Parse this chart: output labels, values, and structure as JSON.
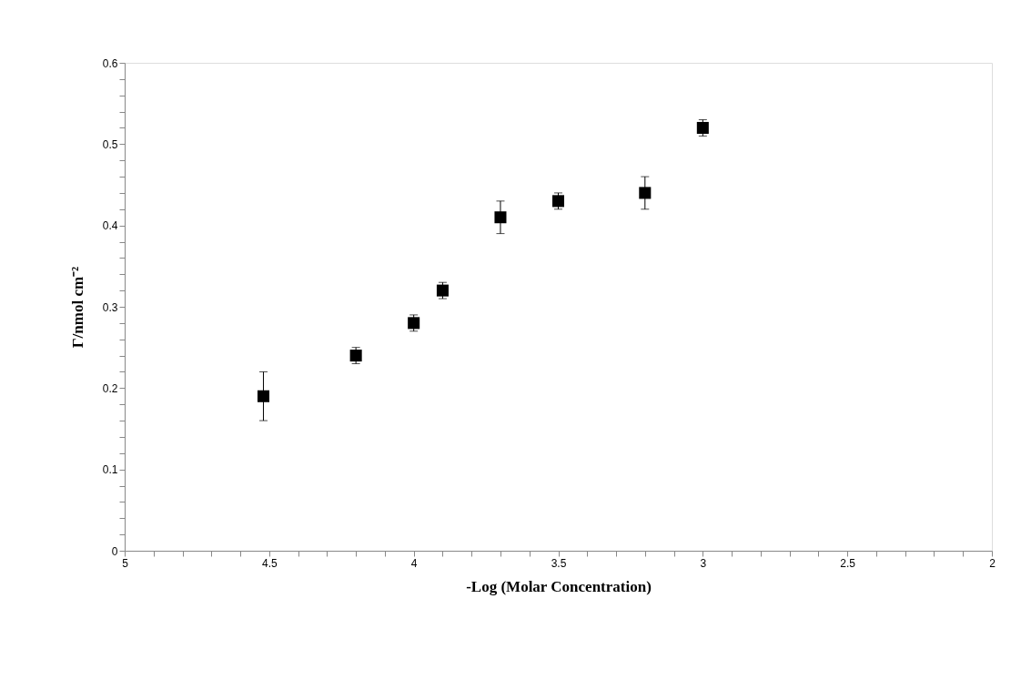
{
  "chart_data": {
    "type": "scatter",
    "xlabel": "-Log (Molar Concentration)",
    "ylabel": "Γ/nmol cm⁻²",
    "x": [
      4.52,
      4.2,
      4.0,
      3.9,
      3.7,
      3.5,
      3.2,
      3.0
    ],
    "values": [
      0.19,
      0.24,
      0.28,
      0.32,
      0.41,
      0.43,
      0.44,
      0.52
    ],
    "errors": [
      [
        0.16,
        0.22
      ],
      [
        0.23,
        0.25
      ],
      [
        0.27,
        0.29
      ],
      [
        0.31,
        0.33
      ],
      [
        0.39,
        0.43
      ],
      [
        0.42,
        0.44
      ],
      [
        0.42,
        0.46
      ],
      [
        0.51,
        0.53
      ]
    ],
    "color": "#000000",
    "marker": "square",
    "grid": false,
    "legend": false,
    "xlim": [
      5,
      2
    ],
    "xticks": [
      5,
      {
        "value": 4.9,
        "label": null
      },
      {
        "value": 4.8,
        "label": null
      },
      {
        "value": 4.7,
        "label": null
      },
      {
        "value": 4.6,
        "label": null
      },
      4.5,
      {
        "value": 4.4,
        "label": null
      },
      {
        "value": 4.3,
        "label": null
      },
      {
        "value": 4.2,
        "label": null
      },
      {
        "value": 4.1,
        "label": null
      },
      4,
      {
        "value": 3.9,
        "label": null
      },
      {
        "value": 3.8,
        "label": null
      },
      {
        "value": 3.7,
        "label": null
      },
      {
        "value": 3.6,
        "label": null
      },
      3.5,
      {
        "value": 3.4,
        "label": null
      },
      {
        "value": 3.3,
        "label": null
      },
      {
        "value": 3.2,
        "label": null
      },
      {
        "value": 3.1,
        "label": null
      },
      3,
      {
        "value": 2.9,
        "label": null
      },
      {
        "value": 2.8,
        "label": null
      },
      {
        "value": 2.7,
        "label": null
      },
      {
        "value": 2.6,
        "label": null
      },
      2.5,
      {
        "value": 2.4,
        "label": null
      },
      {
        "value": 2.3,
        "label": null
      },
      {
        "value": 2.2,
        "label": null
      },
      {
        "value": 2.1,
        "label": null
      },
      2
    ],
    "ylim": [
      0,
      0.6
    ],
    "yticks": [
      0,
      {
        "value": 0.02,
        "label": null
      },
      {
        "value": 0.04,
        "label": null
      },
      {
        "value": 0.06,
        "label": null
      },
      {
        "value": 0.08,
        "label": null
      },
      0.1,
      {
        "value": 0.12,
        "label": null
      },
      {
        "value": 0.14,
        "label": null
      },
      {
        "value": 0.16,
        "label": null
      },
      {
        "value": 0.18,
        "label": null
      },
      0.2,
      {
        "value": 0.22,
        "label": null
      },
      {
        "value": 0.24,
        "label": null
      },
      {
        "value": 0.26,
        "label": null
      },
      {
        "value": 0.28,
        "label": null
      },
      0.3,
      {
        "value": 0.32,
        "label": null
      },
      {
        "value": 0.34,
        "label": null
      },
      {
        "value": 0.36,
        "label": null
      },
      {
        "value": 0.38,
        "label": null
      },
      0.4,
      {
        "value": 0.42,
        "label": null
      },
      {
        "value": 0.44,
        "label": null
      },
      {
        "value": 0.46,
        "label": null
      },
      {
        "value": 0.48,
        "label": null
      },
      0.5,
      {
        "value": 0.52,
        "label": null
      },
      {
        "value": 0.54,
        "label": null
      },
      {
        "value": 0.56,
        "label": null
      },
      {
        "value": 0.58,
        "label": null
      },
      0.6
    ]
  }
}
